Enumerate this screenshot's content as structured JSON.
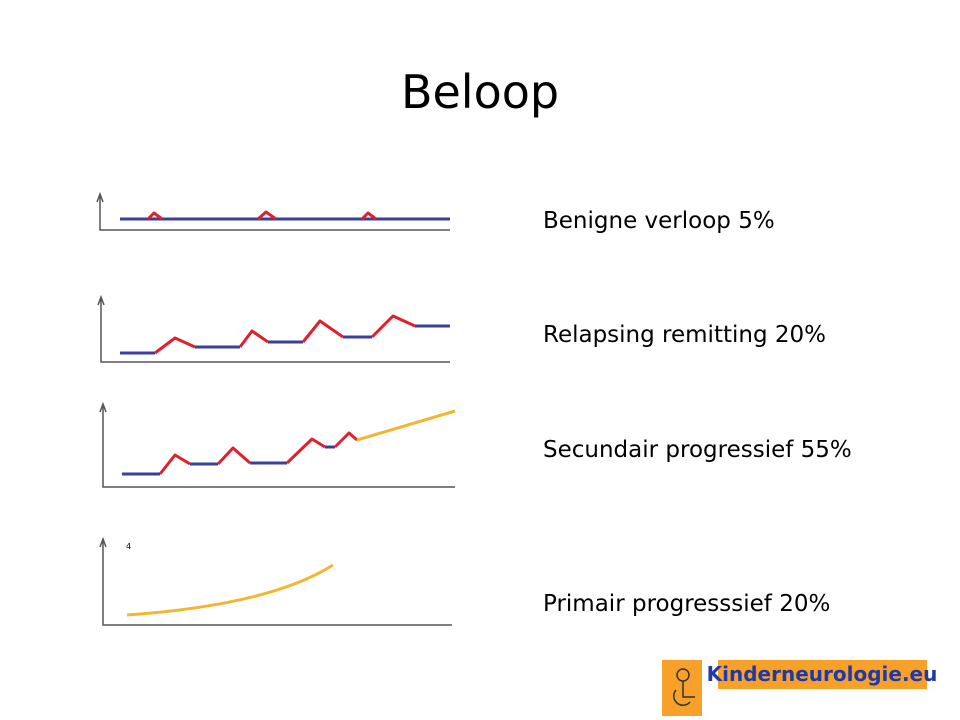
{
  "title": "Beloop",
  "items": [
    {
      "label": "Benigne verloop 5%"
    },
    {
      "label": "Relapsing remitting 20%"
    },
    {
      "label": "Secundair progressief 55%"
    },
    {
      "label": "Primair progresssief 20%"
    }
  ],
  "diagram_mark": "4",
  "logo": {
    "text": "Kinderneurologie.eu"
  }
}
